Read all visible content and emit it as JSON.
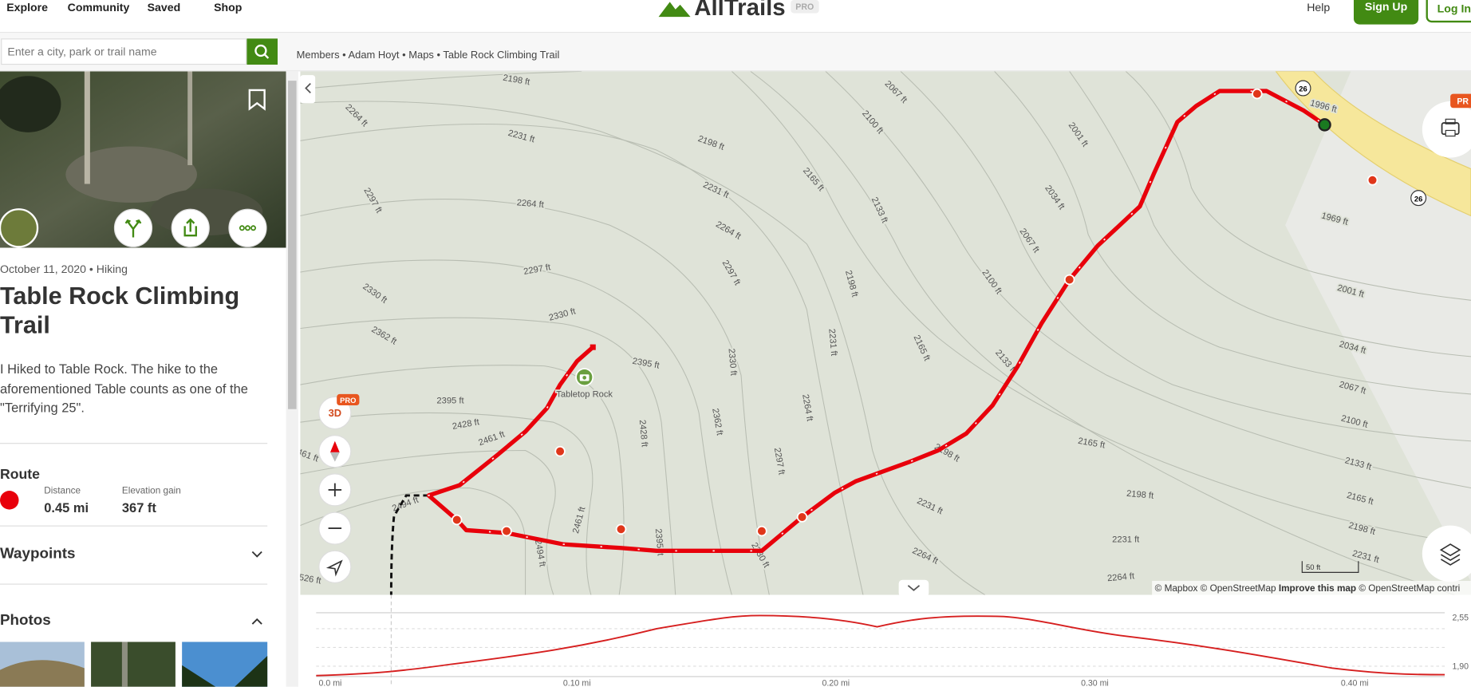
{
  "nav": {
    "links": [
      "Explore",
      "Community",
      "Saved",
      "Shop"
    ],
    "logo": "AllTrails",
    "logo_badge": "PRO",
    "help": "Help",
    "sign_up": "Sign Up",
    "log_in": "Log In"
  },
  "search": {
    "placeholder": "Enter a city, park or trail name"
  },
  "breadcrumbs": [
    "Members",
    "Adam Hoyt",
    "Maps",
    "Table Rock Climbing Trail"
  ],
  "activity": {
    "meta": "October 11, 2020 • Hiking",
    "title": "Table Rock Climbing Trail",
    "description": "I Hiked to Table Rock. The hike to the aforementioned Table counts as one of the \"Terrifying 25\".",
    "route_heading": "Route",
    "stats": [
      {
        "label": "Distance",
        "value": "0.45 mi"
      },
      {
        "label": "Elevation gain",
        "value": "367 ft"
      }
    ],
    "sections": [
      "Waypoints",
      "Photos"
    ]
  },
  "map": {
    "poi": "Tabletop Rock",
    "road_shields": [
      "26",
      "26"
    ],
    "badge_3d": "3D",
    "badge_pro": "PRO",
    "corner_badge": "PR",
    "scale": "50 ft",
    "attribution": [
      "© Mapbox",
      "© OpenStreetMap",
      "Improve this map",
      "© OpenStreetMap contri"
    ],
    "contour_labels": [
      "2198 ft",
      "2264 ft",
      "2231 ft",
      "2198 ft",
      "2067 ft",
      "2100 ft",
      "2165 ft",
      "2231 ft",
      "2297 ft",
      "2264 ft",
      "2264 ft",
      "2133 ft",
      "2001 ft",
      "2034 ft",
      "2067 ft",
      "2100 ft",
      "2297 ft",
      "2297 ft",
      "2198 ft",
      "2330 ft",
      "2330 ft",
      "2362 ft",
      "2231 ft",
      "2165 ft",
      "2330 ft",
      "2133 ft",
      "2395 ft",
      "2395 ft",
      "2428 ft",
      "2461 ft",
      "2362 ft",
      "2264 ft",
      "2428 ft",
      "2297 ft",
      "2198 ft",
      "2165 ft",
      "2231 ft",
      "2461 ft",
      "2494 ft",
      "2494 ft",
      "2395 ft",
      "2330 ft",
      "2264 ft",
      "2264 ft",
      "2231 ft",
      "2198 ft",
      "1969 ft",
      "2001 ft",
      "2034 ft",
      "2067 ft",
      "2100 ft",
      "2133 ft",
      "2165 ft",
      "2198 ft",
      "2231 ft",
      "1996 ft",
      "526 ft",
      "461 ft"
    ]
  },
  "profile": {
    "x_labels": [
      "0.0 mi",
      "0.10 mi",
      "0.20 mi",
      "0.30 mi",
      "0.40 mi"
    ],
    "y_labels": [
      "2,55",
      "1,90"
    ]
  }
}
